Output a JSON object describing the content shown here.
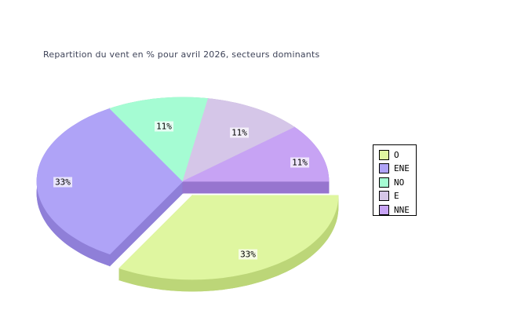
{
  "chart_data": {
    "type": "pie",
    "title": "Repartition du vent en % pour avril 2026, secteurs dominants",
    "title_color": "#3e4358",
    "background_color": "#ffffff",
    "three_d": true,
    "start_angle_deg": 0,
    "direction": "clockwise",
    "legend_position": "right",
    "legend_border_color": "#000000",
    "slice_label_bg": "rgba(255,255,255,0.72)",
    "series": [
      {
        "name": "O",
        "value": 33,
        "label": "33%",
        "color": "#dff6a0",
        "side_color": "#bcd678",
        "exploded": true
      },
      {
        "name": "ENE",
        "value": 33,
        "label": "33%",
        "color": "#afa3f7",
        "side_color": "#8f7fd8",
        "exploded": false
      },
      {
        "name": "NO",
        "value": 11,
        "label": "11%",
        "color": "#a5fcd3",
        "side_color": "#82d9ab",
        "exploded": false
      },
      {
        "name": "E",
        "value": 11,
        "label": "11%",
        "color": "#d5c6e8",
        "side_color": "#b3a2cd",
        "exploded": false
      },
      {
        "name": "NNE",
        "value": 11,
        "label": "11%",
        "color": "#c7a3f4",
        "side_color": "#9775cf",
        "exploded": false
      }
    ]
  }
}
